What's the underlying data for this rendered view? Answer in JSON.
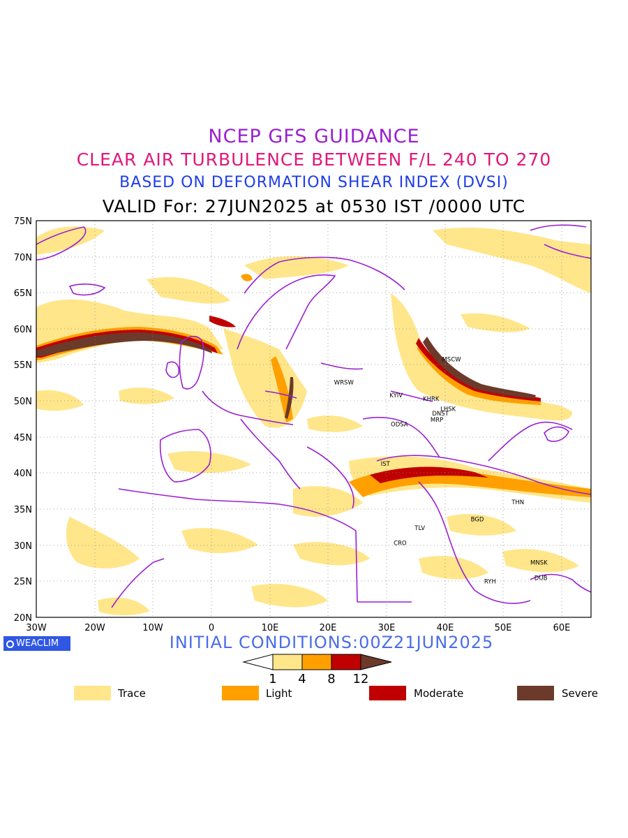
{
  "header": {
    "line1": "NCEP GFS GUIDANCE",
    "line2": "CLEAR AIR TURBULENCE BETWEEN F/L 240 TO 270",
    "line3": "BASED ON DEFORMATION SHEAR INDEX (DVSI)",
    "line4": "VALID For: 27JUN2025 at 0530 IST /0000 UTC"
  },
  "map": {
    "lat_ticks": [
      "75N",
      "70N",
      "65N",
      "60N",
      "55N",
      "50N",
      "45N",
      "40N",
      "35N",
      "30N",
      "25N",
      "20N"
    ],
    "lon_ticks": [
      "30W",
      "20W",
      "10W",
      "0",
      "10E",
      "20E",
      "30E",
      "40E",
      "50E",
      "60E"
    ],
    "cities": [
      {
        "code": "MSCW",
        "lon": 39.5,
        "lat": 55.5
      },
      {
        "code": "WRSW",
        "lon": 21.0,
        "lat": 52.3
      },
      {
        "code": "KYIV",
        "lon": 30.5,
        "lat": 50.5
      },
      {
        "code": "KHRK",
        "lon": 36.2,
        "lat": 50.0
      },
      {
        "code": "LHSK",
        "lon": 39.2,
        "lat": 48.6
      },
      {
        "code": "DNST",
        "lon": 37.8,
        "lat": 48.0
      },
      {
        "code": "MRP",
        "lon": 37.5,
        "lat": 47.1
      },
      {
        "code": "ODSA",
        "lon": 30.7,
        "lat": 46.5
      },
      {
        "code": "IST",
        "lon": 29.0,
        "lat": 41.0
      },
      {
        "code": "THN",
        "lon": 51.4,
        "lat": 35.7
      },
      {
        "code": "BGD",
        "lon": 44.4,
        "lat": 33.3
      },
      {
        "code": "TLV",
        "lon": 34.8,
        "lat": 32.1
      },
      {
        "code": "CRO",
        "lon": 31.2,
        "lat": 30.0
      },
      {
        "code": "MNSK",
        "lon": 54.6,
        "lat": 27.3
      },
      {
        "code": "RYH",
        "lon": 46.7,
        "lat": 24.7
      },
      {
        "code": "DUB",
        "lon": 55.3,
        "lat": 25.2
      }
    ]
  },
  "branding": {
    "label": "WEACLIM"
  },
  "initial_conditions": "INITIAL CONDITIONS:00Z21JUN2025",
  "colorbar": {
    "ticks": [
      "1",
      "4",
      "8",
      "12"
    ],
    "colors": [
      "#ffffff",
      "#ffe68a",
      "#ffa000",
      "#c00000",
      "#6b3a2a"
    ]
  },
  "legend": [
    {
      "label": "Trace",
      "color": "#ffe68a"
    },
    {
      "label": "Light",
      "color": "#ffa000"
    },
    {
      "label": "Moderate",
      "color": "#c00000"
    },
    {
      "label": "Severe",
      "color": "#6b3a2a"
    }
  ],
  "colors": {
    "coastline": "#9a1fd1",
    "trace": "#ffe68a",
    "light": "#ffa000",
    "moderate": "#c00000",
    "severe": "#6b3a2a"
  }
}
